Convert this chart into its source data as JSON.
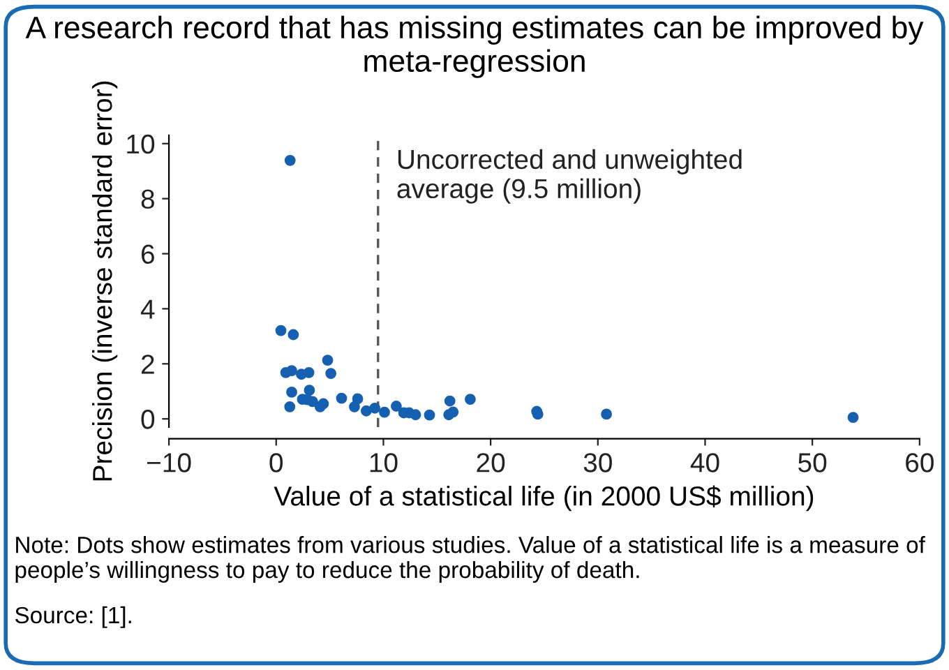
{
  "chart_data": {
    "type": "scatter",
    "title": "A research record that has missing estimates can be improved by meta-regression",
    "xlabel": "Value of a statistical life (in 2000 US$ million)",
    "ylabel": "Precision (inverse standard error)",
    "x": [
      1.3,
      0.44,
      1.6,
      0.9,
      1.45,
      2.35,
      3.05,
      4.8,
      5.1,
      1.45,
      3.1,
      1.27,
      2.45,
      2.9,
      3.4,
      4.1,
      4.4,
      6.1,
      7.3,
      7.6,
      8.4,
      9.2,
      10.1,
      11.2,
      11.9,
      12.4,
      13.0,
      14.3,
      16.2,
      16.1,
      16.5,
      18.1,
      24.3,
      24.4,
      30.8,
      53.8
    ],
    "series": [
      {
        "color": "#1560b0",
        "values": [
          9.39,
          3.21,
          3.06,
          1.68,
          1.75,
          1.62,
          1.68,
          2.13,
          1.65,
          0.97,
          1.04,
          0.44,
          0.71,
          0.7,
          0.63,
          0.44,
          0.55,
          0.75,
          0.44,
          0.73,
          0.29,
          0.39,
          0.24,
          0.46,
          0.22,
          0.22,
          0.15,
          0.14,
          0.65,
          0.15,
          0.25,
          0.71,
          0.27,
          0.17,
          0.17,
          0.05
        ]
      }
    ],
    "xlim": [
      -10,
      60
    ],
    "xticks": [
      {
        "value": -10,
        "label": "−10"
      },
      0,
      10,
      20,
      30,
      40,
      50,
      60
    ],
    "ylim": [
      -0.3,
      10.3
    ],
    "yticks": [
      0,
      2,
      4,
      6,
      8,
      10
    ],
    "ref_lines": [
      {
        "axis": "x",
        "value": 9.5,
        "label": "Uncorrected and unweighted\naverage (9.5 million)",
        "color": "#555555",
        "line_style": "dashed"
      }
    ],
    "annotations": [
      "Note: Dots show estimates from various studies. Value of a statistical life is a measure of people’s willingness to pay to reduce the probability of death.",
      "Source: [1]."
    ],
    "grid": false,
    "marker": "circle"
  }
}
